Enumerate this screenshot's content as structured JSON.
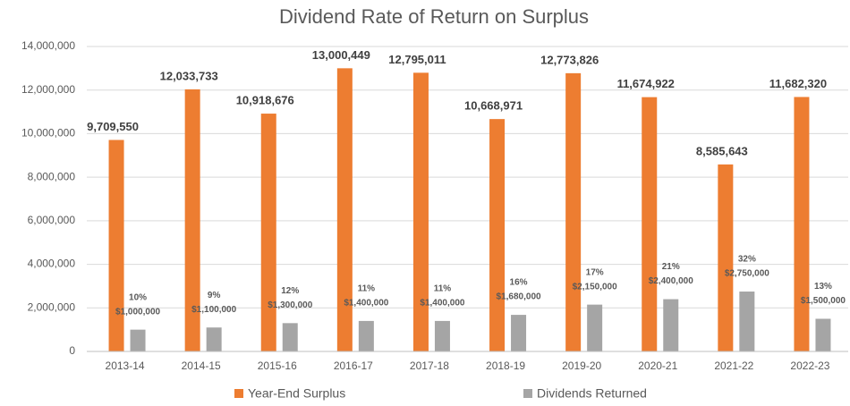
{
  "chart_data": {
    "type": "bar",
    "title": "Dividend Rate of Return on Surplus",
    "categories": [
      "2013-14",
      "2014-15",
      "2015-16",
      "2016-17",
      "2017-18",
      "2018-19",
      "2019-20",
      "2020-21",
      "2021-22",
      "2022-23"
    ],
    "series": [
      {
        "name": "Year-End Surplus",
        "color": "#ED7D31",
        "values": [
          9709550,
          12033733,
          10918676,
          13000449,
          12795011,
          10668971,
          12773826,
          11674922,
          8585643,
          11682320
        ],
        "value_labels": [
          "9,709,550",
          "12,033,733",
          "10,918,676",
          "13,000,449",
          "12,795,011",
          "10,668,971",
          "12,773,826",
          "11,674,922",
          "8,585,643",
          "11,682,320"
        ]
      },
      {
        "name": "Dividends Returned",
        "color": "#A5A5A5",
        "values": [
          1000000,
          1100000,
          1300000,
          1400000,
          1400000,
          1680000,
          2150000,
          2400000,
          2750000,
          1500000
        ],
        "value_labels": [
          "$1,000,000",
          "$1,100,000",
          "$1,300,000",
          "$1,400,000",
          "$1,400,000",
          "$1,680,000",
          "$2,150,000",
          "$2,400,000",
          "$2,750,000",
          "$1,500,000"
        ],
        "rate_labels": [
          "10%",
          "9%",
          "12%",
          "11%",
          "11%",
          "16%",
          "17%",
          "21%",
          "32%",
          "13%"
        ]
      }
    ],
    "ylim": [
      0,
      14000000
    ],
    "yticks": [
      0,
      {
        "value": 2000000,
        "label": "2,000,000"
      },
      {
        "value": 4000000,
        "label": "4,000,000"
      },
      {
        "value": 6000000,
        "label": "6,000,000"
      },
      {
        "value": 8000000,
        "label": "8,000,000"
      },
      {
        "value": 10000000,
        "label": "10,000,000"
      },
      {
        "value": 12000000,
        "label": "12,000,000"
      },
      {
        "value": 14000000,
        "label": "14,000,000"
      }
    ],
    "grid": true,
    "legend": "bottom"
  }
}
